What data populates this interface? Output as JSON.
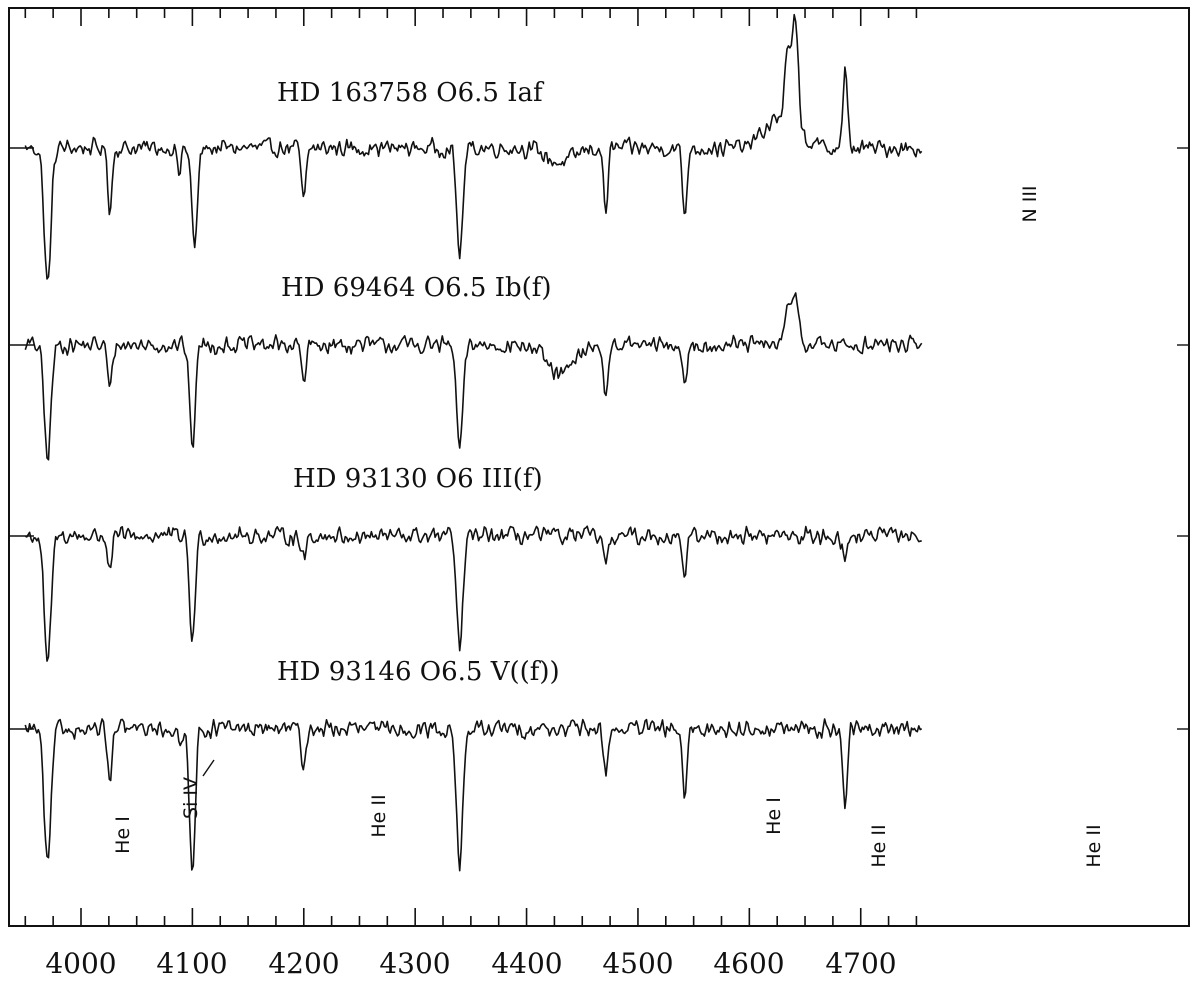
{
  "chart_data": {
    "type": "line",
    "title": "",
    "xlabel": "",
    "ylabel": "",
    "xlim": [
      3950,
      4755
    ],
    "x_ticks": [
      4000,
      4100,
      4200,
      4300,
      4400,
      4500,
      4600,
      4700
    ],
    "x_tick_labels": [
      "4000",
      "4100",
      "4200",
      "4300",
      "4400",
      "4500",
      "4600",
      "4700"
    ],
    "grid": false,
    "legend": "none",
    "series": [
      {
        "name": "HD 163758  O6.5 Iaf",
        "continuum": 1.0,
        "absorption": [
          [
            3970,
            0.55,
            3.0
          ],
          [
            4026,
            0.24,
            2.0
          ],
          [
            4088,
            0.12,
            1.5
          ],
          [
            4102,
            0.4,
            2.5
          ],
          [
            4200,
            0.22,
            2.0
          ],
          [
            4340,
            0.42,
            2.8
          ],
          [
            4430,
            0.06,
            12
          ],
          [
            4471,
            0.25,
            2.0
          ],
          [
            4542,
            0.27,
            2.0
          ]
        ],
        "emission": [
          [
            4628,
            0.12,
            14
          ],
          [
            4634,
            0.25,
            2.5
          ],
          [
            4641,
            0.42,
            3.0
          ],
          [
            4686,
            0.3,
            2.0
          ]
        ]
      },
      {
        "name": "HD 69464  O6.5 Ib(f)",
        "continuum": 1.0,
        "absorption": [
          [
            3970,
            0.45,
            3.0
          ],
          [
            4026,
            0.18,
            2.0
          ],
          [
            4100,
            0.4,
            2.5
          ],
          [
            4200,
            0.15,
            2.0
          ],
          [
            4340,
            0.42,
            2.8
          ],
          [
            4430,
            0.12,
            12
          ],
          [
            4471,
            0.21,
            2.0
          ],
          [
            4542,
            0.19,
            2.0
          ]
        ],
        "emission": [
          [
            4634,
            0.12,
            2.5
          ],
          [
            4641,
            0.22,
            3.0
          ]
        ]
      },
      {
        "name": "HD 93130  O6 III(f)",
        "continuum": 1.0,
        "absorption": [
          [
            3970,
            0.52,
            3.0
          ],
          [
            4026,
            0.14,
            2.0
          ],
          [
            4100,
            0.42,
            2.5
          ],
          [
            4200,
            0.1,
            2.0
          ],
          [
            4340,
            0.45,
            2.8
          ],
          [
            4471,
            0.13,
            2.0
          ],
          [
            4542,
            0.15,
            2.0
          ],
          [
            4686,
            0.1,
            2.0
          ]
        ],
        "emission": []
      },
      {
        "name": "HD 93146  O6.5 V((f))",
        "continuum": 1.0,
        "absorption": [
          [
            3970,
            0.55,
            3.0
          ],
          [
            4026,
            0.22,
            2.0
          ],
          [
            4089,
            0.08,
            2.0
          ],
          [
            4100,
            0.55,
            2.5
          ],
          [
            4200,
            0.15,
            2.0
          ],
          [
            4340,
            0.55,
            2.8
          ],
          [
            4471,
            0.18,
            2.0
          ],
          [
            4542,
            0.3,
            2.0
          ],
          [
            4686,
            0.3,
            2.0
          ]
        ],
        "emission": []
      }
    ],
    "annotations": [
      {
        "text": "N III",
        "x": 4641,
        "series": 0
      },
      {
        "text": "He I",
        "x": 4026,
        "series": 3
      },
      {
        "text": "Si IV",
        "x": 4089,
        "series": 3
      },
      {
        "text": "He II",
        "x": 4200,
        "series": 3
      },
      {
        "text": "He I",
        "x": 4471,
        "series": 3
      },
      {
        "text": "He II",
        "x": 4542,
        "series": 3
      },
      {
        "text": "He II",
        "x": 4686,
        "series": 3
      }
    ]
  }
}
